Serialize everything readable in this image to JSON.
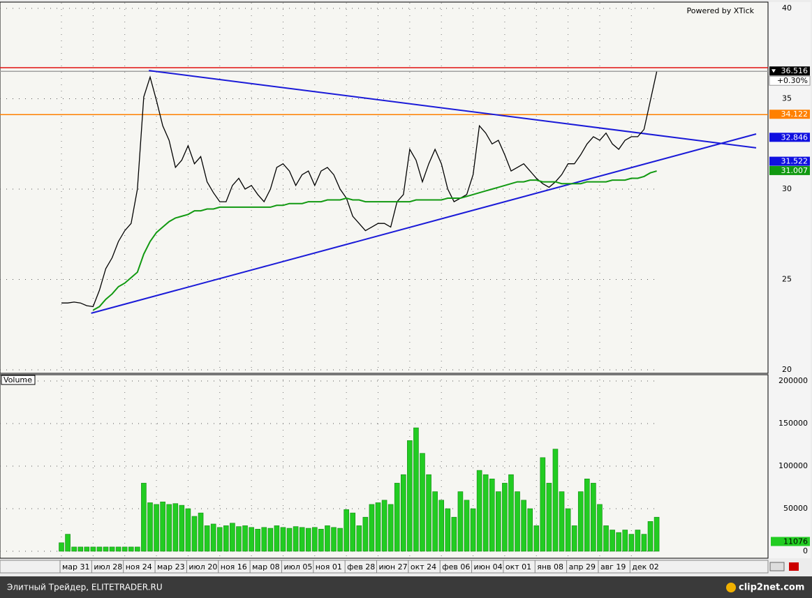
{
  "chart_data": [
    {
      "type": "line",
      "watermark": "Powered by XTick",
      "ylim": [
        20,
        40
      ],
      "yticks": [
        20,
        25,
        30,
        35,
        40
      ],
      "grid": true,
      "series": [
        {
          "color": "#000000",
          "values": [
            23.7,
            23.7,
            23.75,
            23.7,
            23.55,
            23.5,
            24.4,
            25.6,
            26.2,
            27.1,
            27.7,
            28.1,
            30.0,
            35.1,
            36.2,
            34.9,
            33.5,
            32.7,
            31.2,
            31.6,
            32.4,
            31.4,
            31.8,
            30.4,
            29.8,
            29.3,
            29.3,
            30.2,
            30.6,
            30.0,
            30.2,
            29.7,
            29.3,
            30.0,
            31.2,
            31.4,
            31.0,
            30.2,
            30.8,
            31.0,
            30.2,
            31.0,
            31.2,
            30.8,
            30.0,
            29.5,
            28.5,
            28.1,
            27.7,
            27.9,
            28.1,
            28.1,
            27.9,
            29.3,
            29.7,
            32.2,
            31.6,
            30.4,
            31.4,
            32.2,
            31.4,
            30.0,
            29.3,
            29.5,
            29.7,
            30.8,
            33.5,
            33.1,
            32.5,
            32.7,
            31.9,
            31.0,
            31.2,
            31.4,
            31.0,
            30.6,
            30.3,
            30.1,
            30.4,
            30.8,
            31.4,
            31.4,
            31.9,
            32.5,
            32.9,
            32.7,
            33.1,
            32.5,
            32.2,
            32.7,
            32.9,
            32.9,
            33.3,
            34.9,
            36.5
          ]
        },
        {
          "color": "#119911",
          "values": [
            null,
            null,
            null,
            null,
            null,
            23.3,
            23.5,
            23.9,
            24.2,
            24.6,
            24.8,
            25.1,
            25.4,
            26.4,
            27.1,
            27.6,
            27.9,
            28.2,
            28.4,
            28.5,
            28.6,
            28.8,
            28.8,
            28.9,
            28.9,
            29.0,
            29.0,
            29.0,
            29.0,
            29.0,
            29.0,
            29.0,
            29.0,
            29.0,
            29.1,
            29.1,
            29.2,
            29.2,
            29.2,
            29.3,
            29.3,
            29.3,
            29.4,
            29.4,
            29.4,
            29.5,
            29.4,
            29.4,
            29.3,
            29.3,
            29.3,
            29.3,
            29.3,
            29.3,
            29.3,
            29.3,
            29.4,
            29.4,
            29.4,
            29.4,
            29.4,
            29.5,
            29.5,
            29.5,
            29.6,
            29.7,
            29.8,
            29.9,
            30.0,
            30.1,
            30.2,
            30.3,
            30.4,
            30.4,
            30.5,
            30.5,
            30.4,
            30.4,
            30.4,
            30.3,
            30.3,
            30.3,
            30.3,
            30.4,
            30.4,
            30.4,
            30.4,
            30.5,
            30.5,
            30.5,
            30.6,
            30.6,
            30.7,
            30.9,
            31.0
          ]
        }
      ],
      "trendlines": [
        {
          "color": "#1a1ad8",
          "x": [
            13.8,
            109.7
          ],
          "values": [
            36.56,
            32.28
          ]
        },
        {
          "color": "#1a1ad8",
          "x": [
            4.7,
            109.7
          ],
          "values": [
            23.13,
            33.05
          ]
        }
      ],
      "hlines": [
        {
          "value": 36.72,
          "color": "#e01010"
        },
        {
          "value": 36.516,
          "color": "#a0a0a0"
        },
        {
          "value": 34.122,
          "color": "#ff8000"
        }
      ],
      "markers": [
        {
          "value": 36.516,
          "color": "#000000"
        },
        {
          "value": 34.122,
          "color": "#ff8000"
        },
        {
          "value": 32.846,
          "color": "#1010e0"
        },
        {
          "value": 31.522,
          "color": "#1010e0"
        },
        {
          "value": 31.007,
          "color": "#119911"
        }
      ],
      "change": "+0.30%"
    },
    {
      "type": "bar",
      "title": "Volume",
      "color": "#22cc22",
      "ylim": [
        0,
        200000
      ],
      "yticks": [
        0,
        50000,
        100000,
        150000,
        200000
      ],
      "grid": true,
      "categories": [
        "мар 31",
        null,
        null,
        null,
        null,
        "июл 28",
        null,
        null,
        null,
        null,
        "ноя 24",
        null,
        null,
        null,
        null,
        "мар 23",
        null,
        null,
        null,
        null,
        "июл 20",
        null,
        null,
        null,
        null,
        "ноя 16",
        null,
        null,
        null,
        null,
        "мар 08",
        null,
        null,
        null,
        null,
        "июл 05",
        null,
        null,
        null,
        null,
        "ноя 01",
        null,
        null,
        null,
        null,
        "фев 28",
        null,
        null,
        null,
        null,
        "июн 27",
        null,
        null,
        null,
        null,
        "окт 24",
        null,
        null,
        null,
        null,
        "фев 06",
        null,
        null,
        null,
        null,
        "июн 04",
        null,
        null,
        null,
        null,
        "окт 01",
        null,
        null,
        null,
        null,
        "янв 08",
        null,
        null,
        null,
        null,
        "апр 29",
        null,
        null,
        null,
        null,
        "авг 19",
        null,
        null,
        null,
        null,
        "дек 02",
        null,
        null,
        null,
        null
      ],
      "values": [
        10000,
        20000,
        5000,
        5000,
        5000,
        5000,
        5000,
        5000,
        5000,
        5000,
        5000,
        5000,
        5000,
        80000,
        57000,
        55000,
        58000,
        55000,
        56000,
        54000,
        50000,
        41000,
        45000,
        30000,
        32000,
        28000,
        30000,
        33000,
        29000,
        30000,
        28000,
        26000,
        28000,
        27000,
        30000,
        28000,
        27000,
        29000,
        28000,
        27000,
        28000,
        26000,
        30000,
        28000,
        27000,
        49000,
        45000,
        30000,
        40000,
        55000,
        57000,
        60000,
        55000,
        80000,
        90000,
        130000,
        145000,
        115000,
        90000,
        70000,
        60000,
        50000,
        40000,
        70000,
        60000,
        50000,
        95000,
        90000,
        85000,
        70000,
        80000,
        90000,
        70000,
        60000,
        50000,
        30000,
        110000,
        80000,
        120000,
        70000,
        50000,
        30000,
        70000,
        85000,
        80000,
        55000,
        30000,
        25000,
        22000,
        25000,
        20000,
        25000,
        20000,
        35000,
        40000
      ],
      "last_value": 11076
    }
  ],
  "footer": {
    "text": "Элитный Трейдер, ELITETRADER.RU",
    "logo": "clip2net.com"
  }
}
